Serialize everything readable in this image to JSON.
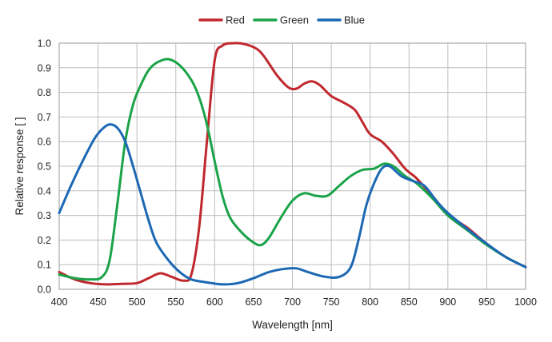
{
  "chart_data": {
    "type": "line",
    "xlabel": "Wavelength [nm]",
    "ylabel": "Relative response [ ]",
    "xlim": [
      400,
      1000
    ],
    "ylim": [
      0,
      1.0
    ],
    "x_ticks": [
      400,
      450,
      500,
      550,
      600,
      650,
      700,
      750,
      800,
      850,
      900,
      950,
      1000
    ],
    "y_ticks": [
      0.0,
      0.1,
      0.2,
      0.3,
      0.4,
      0.5,
      0.6,
      0.7,
      0.8,
      0.9,
      1.0
    ],
    "y_tick_labels": [
      "0.0",
      "0.1",
      "0.2",
      "0.3",
      "0.4",
      "0.5",
      "0.6",
      "0.7",
      "0.8",
      "0.9",
      "1.0"
    ],
    "grid": true,
    "legend_position": "top-center",
    "series": [
      {
        "name": "Red",
        "color": "#c0282d",
        "points": [
          [
            400,
            0.07
          ],
          [
            420,
            0.04
          ],
          [
            440,
            0.025
          ],
          [
            460,
            0.02
          ],
          [
            480,
            0.022
          ],
          [
            500,
            0.025
          ],
          [
            515,
            0.045
          ],
          [
            530,
            0.065
          ],
          [
            545,
            0.05
          ],
          [
            560,
            0.035
          ],
          [
            570,
            0.06
          ],
          [
            580,
            0.25
          ],
          [
            590,
            0.6
          ],
          [
            600,
            0.93
          ],
          [
            610,
            0.99
          ],
          [
            625,
            1.0
          ],
          [
            640,
            0.995
          ],
          [
            655,
            0.975
          ],
          [
            665,
            0.94
          ],
          [
            680,
            0.87
          ],
          [
            695,
            0.82
          ],
          [
            705,
            0.815
          ],
          [
            715,
            0.835
          ],
          [
            725,
            0.845
          ],
          [
            735,
            0.83
          ],
          [
            750,
            0.785
          ],
          [
            765,
            0.76
          ],
          [
            780,
            0.73
          ],
          [
            790,
            0.68
          ],
          [
            800,
            0.63
          ],
          [
            815,
            0.6
          ],
          [
            830,
            0.55
          ],
          [
            845,
            0.49
          ],
          [
            860,
            0.45
          ],
          [
            880,
            0.38
          ],
          [
            900,
            0.305
          ],
          [
            925,
            0.25
          ],
          [
            950,
            0.185
          ],
          [
            975,
            0.13
          ],
          [
            1000,
            0.09
          ]
        ]
      },
      {
        "name": "Green",
        "color": "#1aa348",
        "points": [
          [
            400,
            0.06
          ],
          [
            420,
            0.045
          ],
          [
            440,
            0.04
          ],
          [
            455,
            0.05
          ],
          [
            465,
            0.12
          ],
          [
            475,
            0.35
          ],
          [
            485,
            0.6
          ],
          [
            495,
            0.75
          ],
          [
            505,
            0.83
          ],
          [
            515,
            0.89
          ],
          [
            525,
            0.92
          ],
          [
            540,
            0.935
          ],
          [
            555,
            0.91
          ],
          [
            570,
            0.85
          ],
          [
            580,
            0.78
          ],
          [
            590,
            0.67
          ],
          [
            600,
            0.52
          ],
          [
            610,
            0.38
          ],
          [
            620,
            0.29
          ],
          [
            635,
            0.23
          ],
          [
            650,
            0.19
          ],
          [
            660,
            0.18
          ],
          [
            670,
            0.21
          ],
          [
            685,
            0.29
          ],
          [
            700,
            0.36
          ],
          [
            715,
            0.39
          ],
          [
            730,
            0.38
          ],
          [
            745,
            0.38
          ],
          [
            760,
            0.42
          ],
          [
            775,
            0.46
          ],
          [
            790,
            0.485
          ],
          [
            805,
            0.49
          ],
          [
            818,
            0.51
          ],
          [
            830,
            0.5
          ],
          [
            845,
            0.46
          ],
          [
            860,
            0.43
          ],
          [
            880,
            0.37
          ],
          [
            900,
            0.3
          ],
          [
            925,
            0.24
          ],
          [
            950,
            0.18
          ],
          [
            975,
            0.13
          ],
          [
            1000,
            0.09
          ]
        ]
      },
      {
        "name": "Blue",
        "color": "#1c68b4",
        "points": [
          [
            400,
            0.31
          ],
          [
            415,
            0.42
          ],
          [
            430,
            0.52
          ],
          [
            445,
            0.61
          ],
          [
            455,
            0.65
          ],
          [
            465,
            0.67
          ],
          [
            475,
            0.655
          ],
          [
            485,
            0.6
          ],
          [
            495,
            0.5
          ],
          [
            505,
            0.39
          ],
          [
            515,
            0.28
          ],
          [
            525,
            0.19
          ],
          [
            540,
            0.12
          ],
          [
            555,
            0.07
          ],
          [
            570,
            0.04
          ],
          [
            590,
            0.028
          ],
          [
            610,
            0.02
          ],
          [
            630,
            0.025
          ],
          [
            650,
            0.045
          ],
          [
            670,
            0.07
          ],
          [
            690,
            0.083
          ],
          [
            705,
            0.085
          ],
          [
            720,
            0.07
          ],
          [
            740,
            0.052
          ],
          [
            760,
            0.05
          ],
          [
            775,
            0.09
          ],
          [
            785,
            0.2
          ],
          [
            795,
            0.34
          ],
          [
            805,
            0.43
          ],
          [
            815,
            0.49
          ],
          [
            825,
            0.5
          ],
          [
            840,
            0.46
          ],
          [
            855,
            0.44
          ],
          [
            870,
            0.42
          ],
          [
            885,
            0.36
          ],
          [
            900,
            0.31
          ],
          [
            925,
            0.245
          ],
          [
            950,
            0.185
          ],
          [
            975,
            0.13
          ],
          [
            1000,
            0.09
          ]
        ]
      }
    ]
  }
}
